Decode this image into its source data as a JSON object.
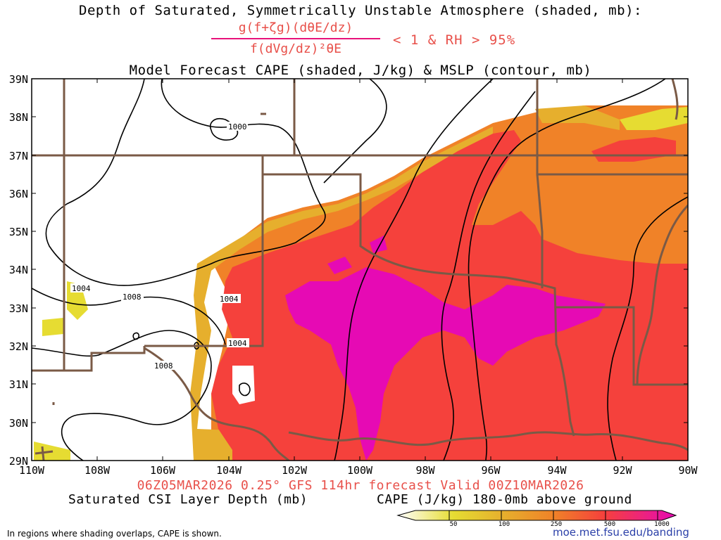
{
  "header": {
    "title_line1": "Depth of Saturated, Symmetrically Unstable Atmosphere (shaded, mb):",
    "formula_numerator": "g(f+ζg)(dθE/dz)",
    "formula_denominator": "f(dVg/dz)²θE",
    "condition": "< 1 & RH > 95%",
    "title_line3": "Model Forecast CAPE (shaded, J/kg) & MSLP (contour, mb)"
  },
  "axes": {
    "lat_labels": [
      "39N",
      "38N",
      "37N",
      "36N",
      "35N",
      "34N",
      "33N",
      "32N",
      "31N",
      "30N",
      "29N"
    ],
    "lon_labels": [
      "110W",
      "108W",
      "106W",
      "104W",
      "102W",
      "100W",
      "98W",
      "96W",
      "94W",
      "92W",
      "90W"
    ]
  },
  "isobars": [
    "1000",
    "1004",
    "1004",
    "1004",
    "1008",
    "1008"
  ],
  "footer": {
    "valid_line": "06Z05MAR2026 0.25° GFS 114hr forecast Valid 00Z10MAR2026",
    "csi_label": "Saturated CSI Layer Depth (mb)",
    "cape_label": "CAPE (J/kg) 180-0mb above ground",
    "colorbar_ticks": [
      "50",
      "100",
      "250",
      "500",
      "1000"
    ],
    "note": "In regions where shading overlaps, CAPE is shown.",
    "url": "moe.met.fsu.edu/banding"
  },
  "colors": {
    "cape_50": "#e6dc32",
    "cape_100": "#e6af2d",
    "cape_250": "#f08228",
    "cape_500": "#f5413c",
    "cape_1000": "#e60ab4",
    "borders": "#7a5a46",
    "contours": "#000000"
  }
}
